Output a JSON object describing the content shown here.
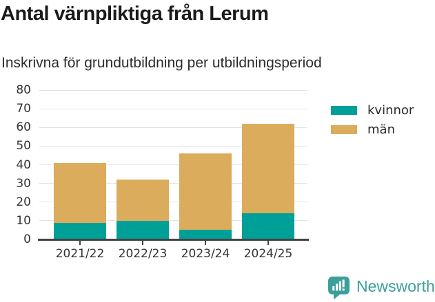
{
  "header": {
    "title": "Antal värnpliktiga från Lerum",
    "subtitle": "Inskrivna för grundutbildning per utbildningsperiod"
  },
  "chart_data": {
    "type": "bar",
    "stacked": true,
    "title": "Antal värnpliktiga från Lerum",
    "subtitle": "Inskrivna för grundutbildning per utbildningsperiod",
    "categories": [
      "2021/22",
      "2022/23",
      "2023/24",
      "2024/25"
    ],
    "series": [
      {
        "name": "kvinnor",
        "color": "#00a099",
        "values": [
          9,
          10,
          5,
          14
        ]
      },
      {
        "name": "män",
        "color": "#dbac5b",
        "values": [
          32,
          22,
          41,
          48
        ]
      }
    ],
    "totals": [
      41,
      32,
      46,
      62
    ],
    "xlabel": "",
    "ylabel": "",
    "ylim": [
      0,
      80
    ],
    "yticks": [
      0,
      10,
      20,
      30,
      40,
      50,
      60,
      70,
      80
    ],
    "grid": true,
    "legend_position": "top-right"
  },
  "footer": {
    "brand": "Newsworthy"
  },
  "colors": {
    "kvinnor": "#00a099",
    "man": "#dbac5b",
    "brand_teal": "#3aa099",
    "axis": "#424242",
    "gridline": "#e3e3e3",
    "text": "#333333"
  }
}
